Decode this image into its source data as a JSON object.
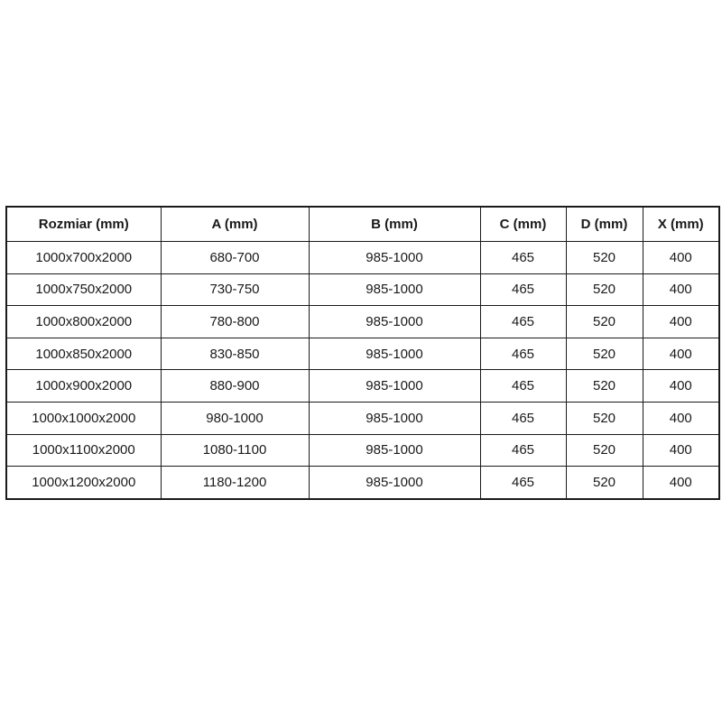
{
  "table": {
    "columns": [
      "Rozmiar (mm)",
      "A (mm)",
      "B (mm)",
      "C (mm)",
      "D (mm)",
      "X (mm)"
    ],
    "rows": [
      [
        "1000x700x2000",
        "680-700",
        "985-1000",
        "465",
        "520",
        "400"
      ],
      [
        "1000x750x2000",
        "730-750",
        "985-1000",
        "465",
        "520",
        "400"
      ],
      [
        "1000x800x2000",
        "780-800",
        "985-1000",
        "465",
        "520",
        "400"
      ],
      [
        "1000x850x2000",
        "830-850",
        "985-1000",
        "465",
        "520",
        "400"
      ],
      [
        "1000x900x2000",
        "880-900",
        "985-1000",
        "465",
        "520",
        "400"
      ],
      [
        "1000x1000x2000",
        "980-1000",
        "985-1000",
        "465",
        "520",
        "400"
      ],
      [
        "1000x1100x2000",
        "1080-1100",
        "985-1000",
        "465",
        "520",
        "400"
      ],
      [
        "1000x1200x2000",
        "1180-1200",
        "985-1000",
        "465",
        "520",
        "400"
      ]
    ],
    "colors": {
      "border": "#1a1a1a",
      "text": "#1a1a1a",
      "background": "#ffffff"
    }
  }
}
